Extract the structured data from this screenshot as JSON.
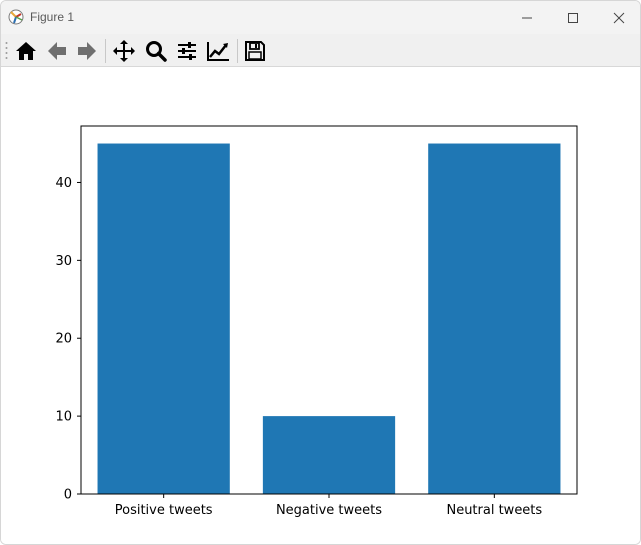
{
  "window": {
    "title": "Figure 1",
    "controls": [
      "minimize-icon",
      "maximize-icon",
      "close-icon"
    ]
  },
  "toolbar": {
    "buttons": [
      {
        "name": "home",
        "icon": "home-icon"
      },
      {
        "name": "back",
        "icon": "arrow-left-icon"
      },
      {
        "name": "forward",
        "icon": "arrow-right-icon"
      },
      {
        "name": "pan",
        "icon": "move-icon"
      },
      {
        "name": "zoom",
        "icon": "magnifier-icon"
      },
      {
        "name": "configure-subplots",
        "icon": "sliders-icon"
      },
      {
        "name": "edit-axis",
        "icon": "line-chart-icon"
      },
      {
        "name": "save",
        "icon": "floppy-disk-icon"
      }
    ]
  },
  "chart_data": {
    "type": "bar",
    "categories": [
      "Positive tweets",
      "Negative tweets",
      "Neutral tweets"
    ],
    "values": [
      45,
      10,
      45
    ],
    "title": "",
    "xlabel": "",
    "ylabel": "",
    "ylim": [
      0,
      47.25
    ],
    "yticks": [
      0,
      10,
      20,
      30,
      40
    ],
    "color": "#1f77b4",
    "grid": false,
    "legend": "none"
  }
}
